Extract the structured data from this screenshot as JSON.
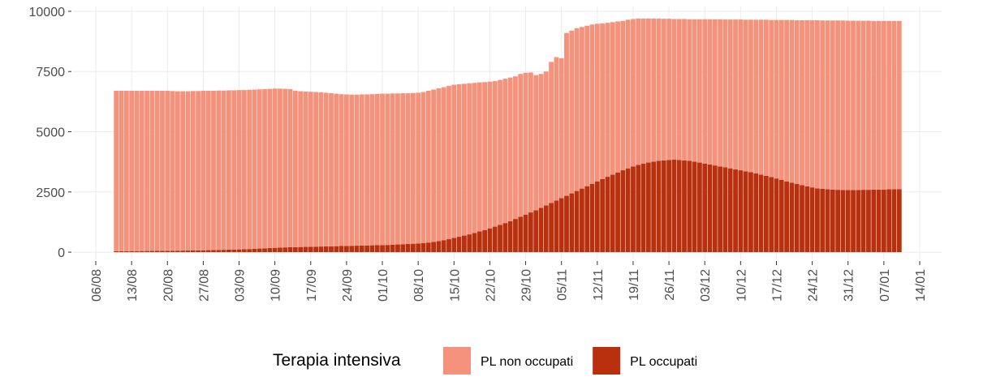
{
  "chart_data": {
    "type": "stacked_bar",
    "legend_title": "Terapia intensiva",
    "x": [
      "10/08",
      "11/08",
      "12/08",
      "13/08",
      "14/08",
      "15/08",
      "16/08",
      "17/08",
      "18/08",
      "19/08",
      "20/08",
      "21/08",
      "22/08",
      "23/08",
      "24/08",
      "25/08",
      "26/08",
      "27/08",
      "28/08",
      "29/08",
      "30/08",
      "31/08",
      "01/09",
      "02/09",
      "03/09",
      "04/09",
      "05/09",
      "06/09",
      "07/09",
      "08/09",
      "09/09",
      "10/09",
      "11/09",
      "12/09",
      "13/09",
      "14/09",
      "15/09",
      "16/09",
      "17/09",
      "18/09",
      "19/09",
      "20/09",
      "21/09",
      "22/09",
      "23/09",
      "24/09",
      "25/09",
      "26/09",
      "27/09",
      "28/09",
      "29/09",
      "30/09",
      "01/10",
      "02/10",
      "03/10",
      "04/10",
      "05/10",
      "06/10",
      "07/10",
      "08/10",
      "09/10",
      "10/10",
      "11/10",
      "12/10",
      "13/10",
      "14/10",
      "15/10",
      "16/10",
      "17/10",
      "18/10",
      "19/10",
      "20/10",
      "21/10",
      "22/10",
      "23/10",
      "24/10",
      "25/10",
      "26/10",
      "27/10",
      "28/10",
      "29/10",
      "30/10",
      "31/10",
      "01/11",
      "02/11",
      "03/11",
      "04/11",
      "05/11",
      "06/11",
      "07/11",
      "08/11",
      "09/11",
      "10/11",
      "11/11",
      "12/11",
      "13/11",
      "14/11",
      "15/11",
      "16/11",
      "17/11",
      "18/11",
      "19/11",
      "20/11",
      "21/11",
      "22/11",
      "23/11",
      "24/11",
      "25/11",
      "26/11",
      "27/11",
      "28/11",
      "29/11",
      "30/11",
      "01/12",
      "02/12",
      "03/12",
      "04/12",
      "05/12",
      "06/12",
      "07/12",
      "08/12",
      "09/12",
      "10/12",
      "11/12",
      "12/12",
      "13/12",
      "14/12",
      "15/12",
      "16/12",
      "17/12",
      "18/12",
      "19/12",
      "20/12",
      "21/12",
      "22/12",
      "23/12",
      "24/12",
      "25/12",
      "26/12",
      "27/12",
      "28/12",
      "29/12",
      "30/12",
      "31/12",
      "01/01",
      "02/01",
      "03/01",
      "04/01",
      "05/01",
      "06/01",
      "07/01",
      "08/01",
      "09/01",
      "10/01"
    ],
    "series": [
      {
        "name": "PL non occupati",
        "color": "#f4927b",
        "values": [
          6660,
          6660,
          6658,
          6655,
          6655,
          6652,
          6650,
          6648,
          6645,
          6645,
          6642,
          6630,
          6618,
          6615,
          6612,
          6620,
          6615,
          6620,
          6615,
          6610,
          6615,
          6610,
          6615,
          6610,
          6615,
          6610,
          6610,
          6610,
          6610,
          6610,
          6610,
          6610,
          6600,
          6580,
          6565,
          6490,
          6465,
          6450,
          6435,
          6420,
          6405,
          6380,
          6355,
          6330,
          6305,
          6290,
          6275,
          6270,
          6275,
          6270,
          6275,
          6280,
          6285,
          6280,
          6280,
          6270,
          6270,
          6260,
          6260,
          6260,
          6270,
          6300,
          6320,
          6340,
          6350,
          6360,
          6360,
          6330,
          6300,
          6270,
          6230,
          6190,
          6140,
          6090,
          6040,
          6020,
          5990,
          5960,
          5920,
          5930,
          5890,
          5810,
          5610,
          5560,
          5560,
          5860,
          5960,
          5810,
          6760,
          6760,
          6760,
          6710,
          6660,
          6610,
          6540,
          6460,
          6390,
          6330,
          6270,
          6200,
          6170,
          6120,
          6080,
          6020,
          5980,
          5940,
          5910,
          5880,
          5860,
          5840,
          5850,
          5870,
          5880,
          5910,
          5950,
          5990,
          6030,
          6070,
          6110,
          6140,
          6180,
          6220,
          6260,
          6290,
          6330,
          6380,
          6430,
          6480,
          6520,
          6580,
          6640,
          6700,
          6760,
          6800,
          6850,
          6900,
          6940,
          6980,
          6990,
          7010,
          7020,
          7030,
          7040,
          7030,
          7030,
          7030,
          7020,
          7020,
          7000,
          7000,
          7000,
          6990,
          6990,
          6980
        ]
      },
      {
        "name": "PL occupati",
        "color": "#b8300d",
        "values": [
          40,
          40,
          42,
          45,
          45,
          48,
          50,
          52,
          55,
          55,
          58,
          60,
          62,
          65,
          68,
          70,
          75,
          80,
          85,
          90,
          95,
          100,
          105,
          110,
          115,
          120,
          130,
          140,
          150,
          160,
          170,
          180,
          190,
          200,
          205,
          210,
          215,
          220,
          225,
          230,
          235,
          240,
          245,
          250,
          255,
          260,
          265,
          270,
          275,
          280,
          285,
          290,
          295,
          300,
          310,
          320,
          330,
          340,
          350,
          360,
          380,
          400,
          430,
          460,
          500,
          540,
          590,
          640,
          690,
          740,
          800,
          860,
          920,
          990,
          1060,
          1130,
          1210,
          1290,
          1380,
          1470,
          1560,
          1650,
          1740,
          1840,
          1940,
          2040,
          2140,
          2240,
          2340,
          2440,
          2540,
          2640,
          2740,
          2840,
          2940,
          3040,
          3130,
          3220,
          3310,
          3400,
          3480,
          3560,
          3620,
          3680,
          3720,
          3760,
          3790,
          3810,
          3830,
          3840,
          3830,
          3810,
          3790,
          3760,
          3720,
          3680,
          3640,
          3600,
          3560,
          3520,
          3480,
          3440,
          3400,
          3360,
          3320,
          3270,
          3220,
          3170,
          3120,
          3060,
          3000,
          2940,
          2880,
          2830,
          2780,
          2730,
          2690,
          2650,
          2630,
          2610,
          2600,
          2590,
          2580,
          2580,
          2580,
          2580,
          2590,
          2590,
          2600,
          2600,
          2600,
          2610,
          2610,
          2620
        ]
      }
    ],
    "xlim": [
      "06/08",
      "14/01"
    ],
    "xticks": [
      "06/08",
      "13/08",
      "20/08",
      "27/08",
      "03/09",
      "10/09",
      "17/09",
      "24/09",
      "01/10",
      "08/10",
      "15/10",
      "22/10",
      "29/10",
      "05/11",
      "12/11",
      "19/11",
      "26/11",
      "03/12",
      "10/12",
      "17/12",
      "24/12",
      "31/12",
      "07/01",
      "14/01"
    ],
    "ylim": [
      -300,
      10200
    ],
    "yticks": [
      0,
      2500,
      5000,
      7500,
      10000
    ],
    "grid": true,
    "legend_position": "bottom"
  }
}
